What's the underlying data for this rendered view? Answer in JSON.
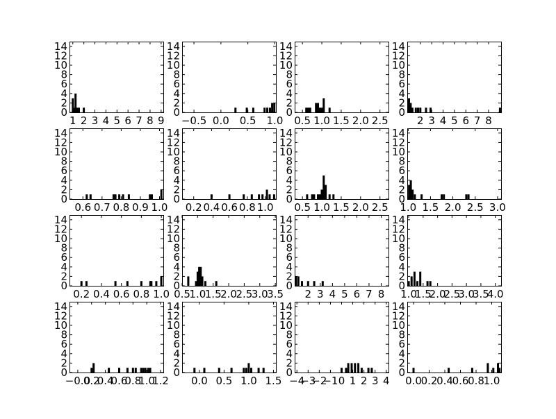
{
  "chart_data": [
    {
      "type": "histogram",
      "ylim": [
        0,
        15
      ],
      "yticks": [
        0,
        2,
        4,
        6,
        8,
        10,
        12,
        14
      ],
      "xlim": [
        0.7,
        9.2
      ],
      "xticks": [
        1,
        2,
        3,
        4,
        5,
        6,
        7,
        8,
        9
      ],
      "xtick_labels": [
        "1",
        "2",
        "3",
        "4",
        "5",
        "6",
        "7",
        "8",
        "9"
      ],
      "bins": [
        {
          "x": 1.0,
          "count": 3
        },
        {
          "x": 1.1,
          "count": 1
        },
        {
          "x": 1.25,
          "count": 4
        },
        {
          "x": 1.4,
          "count": 1
        },
        {
          "x": 1.55,
          "count": 1
        },
        {
          "x": 2.0,
          "count": 1
        }
      ]
    },
    {
      "type": "histogram",
      "ylim": [
        0,
        15
      ],
      "yticks": [
        0,
        2,
        4,
        6,
        8,
        10,
        12,
        14
      ],
      "xlim": [
        -0.72,
        1.02
      ],
      "xticks": [
        -0.5,
        0.0,
        0.5,
        1.0
      ],
      "xtick_labels": [
        "−0.5",
        "0.0",
        "0.5",
        "1.0"
      ],
      "bins": [
        {
          "x": 0.27,
          "count": 1
        },
        {
          "x": 0.48,
          "count": 1
        },
        {
          "x": 0.6,
          "count": 1
        },
        {
          "x": 0.81,
          "count": 1
        },
        {
          "x": 0.86,
          "count": 1
        },
        {
          "x": 0.91,
          "count": 1
        },
        {
          "x": 0.95,
          "count": 2
        },
        {
          "x": 0.99,
          "count": 2
        }
      ]
    },
    {
      "type": "histogram",
      "ylim": [
        0,
        15
      ],
      "yticks": [
        0,
        2,
        4,
        6,
        8,
        10,
        12,
        14
      ],
      "xlim": [
        0.3,
        2.72
      ],
      "xticks": [
        0.5,
        1.0,
        1.5,
        2.0,
        2.5
      ],
      "xtick_labels": [
        "0.5",
        "1.0",
        "1.5",
        "2.0",
        "2.5"
      ],
      "bins": [
        {
          "x": 0.6,
          "count": 1
        },
        {
          "x": 0.65,
          "count": 1
        },
        {
          "x": 0.7,
          "count": 1
        },
        {
          "x": 0.85,
          "count": 2
        },
        {
          "x": 0.9,
          "count": 2
        },
        {
          "x": 0.95,
          "count": 1
        },
        {
          "x": 1.0,
          "count": 1
        },
        {
          "x": 1.05,
          "count": 3
        },
        {
          "x": 1.2,
          "count": 1
        }
      ]
    },
    {
      "type": "histogram",
      "ylim": [
        0,
        15
      ],
      "yticks": [
        0,
        2,
        4,
        6,
        8,
        10,
        12,
        14
      ],
      "xlim": [
        0.85,
        9.1
      ],
      "xticks": [
        2,
        3,
        4,
        5,
        6,
        7,
        8
      ],
      "xtick_labels": [
        "2",
        "3",
        "4",
        "5",
        "6",
        "7",
        "8"
      ],
      "bins": [
        {
          "x": 1.0,
          "count": 3
        },
        {
          "x": 1.15,
          "count": 2
        },
        {
          "x": 1.3,
          "count": 1
        },
        {
          "x": 1.6,
          "count": 1
        },
        {
          "x": 1.8,
          "count": 1
        },
        {
          "x": 2.0,
          "count": 1
        },
        {
          "x": 2.5,
          "count": 1
        },
        {
          "x": 2.9,
          "count": 1
        },
        {
          "x": 9.0,
          "count": 1
        }
      ]
    },
    {
      "type": "histogram",
      "ylim": [
        0,
        15
      ],
      "yticks": [
        0,
        2,
        4,
        6,
        8,
        10,
        12,
        14
      ],
      "xlim": [
        0.53,
        1.02
      ],
      "xticks": [
        0.6,
        0.7,
        0.8,
        0.9,
        1.0
      ],
      "xtick_labels": [
        "0.6",
        "0.7",
        "0.8",
        "0.9",
        "1.0"
      ],
      "bins": [
        {
          "x": 0.62,
          "count": 1
        },
        {
          "x": 0.64,
          "count": 1
        },
        {
          "x": 0.76,
          "count": 1
        },
        {
          "x": 0.77,
          "count": 1
        },
        {
          "x": 0.79,
          "count": 1
        },
        {
          "x": 0.81,
          "count": 1
        },
        {
          "x": 0.84,
          "count": 1
        },
        {
          "x": 0.95,
          "count": 1
        },
        {
          "x": 0.96,
          "count": 1
        },
        {
          "x": 1.01,
          "count": 2
        }
      ]
    },
    {
      "type": "histogram",
      "ylim": [
        0,
        15
      ],
      "yticks": [
        0,
        2,
        4,
        6,
        8,
        10,
        12,
        14
      ],
      "xlim": [
        0.07,
        1.12
      ],
      "xticks": [
        0.2,
        0.4,
        0.6,
        0.8,
        1.0
      ],
      "xtick_labels": [
        "0.2",
        "0.4",
        "0.6",
        "0.8",
        "1.0"
      ],
      "bins": [
        {
          "x": 0.4,
          "count": 1
        },
        {
          "x": 0.6,
          "count": 1
        },
        {
          "x": 0.76,
          "count": 1
        },
        {
          "x": 0.85,
          "count": 1
        },
        {
          "x": 0.93,
          "count": 1
        },
        {
          "x": 0.97,
          "count": 1
        },
        {
          "x": 1.02,
          "count": 2
        },
        {
          "x": 1.05,
          "count": 1
        },
        {
          "x": 1.1,
          "count": 1
        }
      ]
    },
    {
      "type": "histogram",
      "ylim": [
        0,
        15
      ],
      "yticks": [
        0,
        2,
        4,
        6,
        8,
        10,
        12,
        14
      ],
      "xlim": [
        0.3,
        2.72
      ],
      "xticks": [
        0.5,
        1.0,
        1.5,
        2.0,
        2.5
      ],
      "xtick_labels": [
        "0.5",
        "1.0",
        "1.5",
        "2.0",
        "2.5"
      ],
      "bins": [
        {
          "x": 0.62,
          "count": 1
        },
        {
          "x": 0.75,
          "count": 1
        },
        {
          "x": 0.8,
          "count": 1
        },
        {
          "x": 0.9,
          "count": 1
        },
        {
          "x": 0.95,
          "count": 1
        },
        {
          "x": 1.0,
          "count": 2
        },
        {
          "x": 1.05,
          "count": 5
        },
        {
          "x": 1.1,
          "count": 3
        },
        {
          "x": 1.2,
          "count": 1
        },
        {
          "x": 1.3,
          "count": 1
        }
      ]
    },
    {
      "type": "histogram",
      "ylim": [
        0,
        15
      ],
      "yticks": [
        0,
        2,
        4,
        6,
        8,
        10,
        12,
        14
      ],
      "xlim": [
        0.98,
        3.08
      ],
      "xticks": [
        1.0,
        1.5,
        2.0,
        2.5,
        3.0
      ],
      "xtick_labels": [
        "1.0",
        "1.5",
        "2.0",
        "2.5",
        "3.0"
      ],
      "bins": [
        {
          "x": 1.02,
          "count": 3
        },
        {
          "x": 1.06,
          "count": 4
        },
        {
          "x": 1.1,
          "count": 2
        },
        {
          "x": 1.15,
          "count": 1
        },
        {
          "x": 1.3,
          "count": 1
        },
        {
          "x": 1.75,
          "count": 1
        },
        {
          "x": 1.8,
          "count": 1
        },
        {
          "x": 2.3,
          "count": 1
        },
        {
          "x": 2.35,
          "count": 1
        }
      ]
    },
    {
      "type": "histogram",
      "ylim": [
        0,
        15
      ],
      "yticks": [
        0,
        2,
        4,
        6,
        8,
        10,
        12,
        14
      ],
      "xlim": [
        0.08,
        1.02
      ],
      "xticks": [
        0.2,
        0.4,
        0.6,
        0.8,
        1.0
      ],
      "xtick_labels": [
        "0.2",
        "0.4",
        "0.6",
        "0.8",
        "1.0"
      ],
      "bins": [
        {
          "x": 0.2,
          "count": 1
        },
        {
          "x": 0.25,
          "count": 1
        },
        {
          "x": 0.54,
          "count": 1
        },
        {
          "x": 0.66,
          "count": 1
        },
        {
          "x": 0.8,
          "count": 1
        },
        {
          "x": 0.89,
          "count": 1
        },
        {
          "x": 0.9,
          "count": 1
        },
        {
          "x": 0.95,
          "count": 1
        },
        {
          "x": 1.0,
          "count": 2
        }
      ]
    },
    {
      "type": "histogram",
      "ylim": [
        0,
        15
      ],
      "yticks": [
        0,
        2,
        4,
        6,
        8,
        10,
        12,
        14
      ],
      "xlim": [
        0.5,
        3.52
      ],
      "xticks": [
        0.5,
        1.0,
        1.5,
        2.0,
        2.5,
        3.0,
        3.5
      ],
      "xtick_labels": [
        "0.5",
        "1.0",
        "1.5",
        "2.0",
        "2.5",
        "3.0",
        "3.5"
      ],
      "bins": [
        {
          "x": 0.7,
          "count": 2
        },
        {
          "x": 0.95,
          "count": 1
        },
        {
          "x": 1.0,
          "count": 3
        },
        {
          "x": 1.05,
          "count": 4
        },
        {
          "x": 1.1,
          "count": 4
        },
        {
          "x": 1.15,
          "count": 2
        },
        {
          "x": 1.25,
          "count": 1
        },
        {
          "x": 1.6,
          "count": 1
        }
      ]
    },
    {
      "type": "histogram",
      "ylim": [
        0,
        15
      ],
      "yticks": [
        0,
        2,
        4,
        6,
        8,
        10,
        12,
        14
      ],
      "xlim": [
        0.9,
        8.6
      ],
      "xticks": [
        2,
        3,
        4,
        5,
        6,
        7,
        8
      ],
      "xtick_labels": [
        "2",
        "3",
        "4",
        "5",
        "6",
        "7",
        "8"
      ],
      "bins": [
        {
          "x": 1.0,
          "count": 2
        },
        {
          "x": 1.2,
          "count": 2
        },
        {
          "x": 1.5,
          "count": 1
        },
        {
          "x": 2.0,
          "count": 1
        },
        {
          "x": 2.5,
          "count": 1
        },
        {
          "x": 3.2,
          "count": 1
        }
      ]
    },
    {
      "type": "histogram",
      "ylim": [
        0,
        15
      ],
      "yticks": [
        0,
        2,
        4,
        6,
        8,
        10,
        12,
        14
      ],
      "xlim": [
        0.95,
        4.2
      ],
      "xticks": [
        1.0,
        1.5,
        2.0,
        2.5,
        3.0,
        3.5,
        4.0
      ],
      "xtick_labels": [
        "1.0",
        "1.5",
        "2.0",
        "2.5",
        "3.0",
        "3.5",
        "4.0"
      ],
      "bins": [
        {
          "x": 1.0,
          "count": 1
        },
        {
          "x": 1.1,
          "count": 2
        },
        {
          "x": 1.2,
          "count": 3
        },
        {
          "x": 1.3,
          "count": 1
        },
        {
          "x": 1.4,
          "count": 3
        },
        {
          "x": 1.65,
          "count": 1
        },
        {
          "x": 1.75,
          "count": 1
        }
      ]
    },
    {
      "type": "histogram",
      "ylim": [
        0,
        15
      ],
      "yticks": [
        0,
        2,
        4,
        6,
        8,
        10,
        12,
        14
      ],
      "xlim": [
        -0.12,
        1.24
      ],
      "xticks": [
        0.0,
        0.2,
        0.4,
        0.6,
        0.8,
        1.0,
        1.2
      ],
      "xtick_labels": [
        "−0.0",
        "0.2",
        "0.4",
        "0.6",
        "0.8",
        "1.0",
        "1.2"
      ],
      "bins": [
        {
          "x": 0.2,
          "count": 1
        },
        {
          "x": 0.23,
          "count": 2
        },
        {
          "x": 0.45,
          "count": 1
        },
        {
          "x": 0.6,
          "count": 1
        },
        {
          "x": 0.72,
          "count": 1
        },
        {
          "x": 0.8,
          "count": 1
        },
        {
          "x": 0.84,
          "count": 1
        },
        {
          "x": 0.92,
          "count": 1
        },
        {
          "x": 0.95,
          "count": 1
        },
        {
          "x": 0.98,
          "count": 1
        },
        {
          "x": 1.02,
          "count": 1
        },
        {
          "x": 1.05,
          "count": 1
        }
      ]
    },
    {
      "type": "histogram",
      "ylim": [
        0,
        15
      ],
      "yticks": [
        0,
        2,
        4,
        6,
        8,
        10,
        12,
        14
      ],
      "xlim": [
        -0.35,
        1.55
      ],
      "xticks": [
        0.0,
        0.5,
        1.0,
        1.5
      ],
      "xtick_labels": [
        "0.0",
        "0.5",
        "1.0",
        "1.5"
      ],
      "bins": [
        {
          "x": -0.1,
          "count": 1
        },
        {
          "x": 0.1,
          "count": 1
        },
        {
          "x": 0.4,
          "count": 1
        },
        {
          "x": 0.65,
          "count": 1
        },
        {
          "x": 0.9,
          "count": 1
        },
        {
          "x": 0.95,
          "count": 1
        },
        {
          "x": 1.0,
          "count": 2
        },
        {
          "x": 1.05,
          "count": 1
        },
        {
          "x": 1.2,
          "count": 1
        },
        {
          "x": 1.3,
          "count": 1
        }
      ]
    },
    {
      "type": "histogram",
      "ylim": [
        0,
        15
      ],
      "yticks": [
        0,
        2,
        4,
        6,
        8,
        10,
        12,
        14
      ],
      "xlim": [
        -4.2,
        4.2
      ],
      "xticks": [
        -4,
        -3,
        -2,
        -1,
        0,
        1,
        2,
        3,
        4
      ],
      "xtick_labels": [
        "−4",
        "−3",
        "−2",
        "−1",
        "0",
        "1",
        "2",
        "3",
        "4"
      ],
      "bins": [
        {
          "x": 0.0,
          "count": 1
        },
        {
          "x": 0.4,
          "count": 1
        },
        {
          "x": 0.6,
          "count": 2
        },
        {
          "x": 0.9,
          "count": 2
        },
        {
          "x": 1.2,
          "count": 2
        },
        {
          "x": 1.5,
          "count": 2
        },
        {
          "x": 1.8,
          "count": 1
        },
        {
          "x": 2.4,
          "count": 1
        },
        {
          "x": 2.7,
          "count": 1
        }
      ]
    },
    {
      "type": "histogram",
      "ylim": [
        0,
        15
      ],
      "yticks": [
        0,
        2,
        4,
        6,
        8,
        10,
        12,
        14
      ],
      "xlim": [
        -0.08,
        1.12
      ],
      "xticks": [
        0.0,
        0.2,
        0.4,
        0.6,
        0.8,
        1.0
      ],
      "xtick_labels": [
        "0.0",
        "0.2",
        "0.4",
        "0.6",
        "0.8",
        "1.0"
      ],
      "bins": [
        {
          "x": 0.0,
          "count": 1
        },
        {
          "x": 0.45,
          "count": 1
        },
        {
          "x": 0.75,
          "count": 1
        },
        {
          "x": 0.95,
          "count": 2
        },
        {
          "x": 1.02,
          "count": 1
        },
        {
          "x": 1.08,
          "count": 2
        },
        {
          "x": 1.1,
          "count": 1
        }
      ]
    }
  ]
}
